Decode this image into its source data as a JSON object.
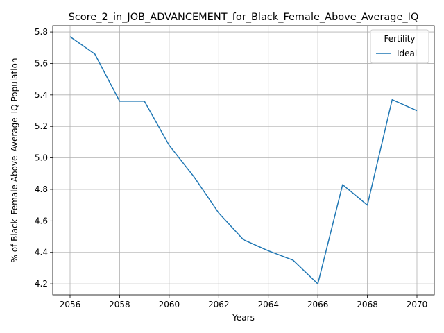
{
  "chart_data": {
    "type": "line",
    "title": "Score_2_in_JOB_ADVANCEMENT_for_Black_Female_Above_Average_IQ",
    "xlabel": "Years",
    "ylabel": "% of Black_Female Above_Average_IQ Population",
    "x": [
      2056,
      2057,
      2058,
      2059,
      2060,
      2061,
      2062,
      2063,
      2064,
      2065,
      2066,
      2067,
      2068,
      2069,
      2070
    ],
    "series": [
      {
        "name": "Ideal",
        "color": "#1f77b4",
        "values": [
          5.77,
          5.66,
          5.36,
          5.36,
          5.08,
          4.88,
          4.65,
          4.48,
          4.41,
          4.35,
          4.2,
          4.83,
          4.7,
          5.37,
          5.3
        ]
      }
    ],
    "xlim": [
      2055.3,
      2070.7
    ],
    "ylim": [
      4.13,
      5.84
    ],
    "xticks": [
      2056,
      2058,
      2060,
      2062,
      2064,
      2066,
      2068,
      2070
    ],
    "yticks": [
      4.2,
      4.4,
      4.6,
      4.8,
      5.0,
      5.2,
      5.4,
      5.6,
      5.8
    ],
    "grid": true,
    "legend": {
      "title": "Fertility",
      "position": "top-right"
    }
  }
}
